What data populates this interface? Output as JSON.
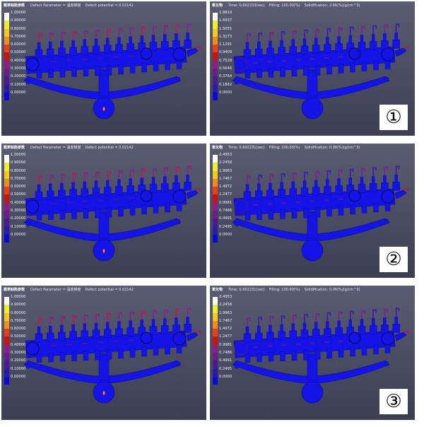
{
  "palette": [
    "#0a0ad8",
    "#2a1aa8",
    "#4a1a92",
    "#6a1f86",
    "#8e1e86",
    "#c81414",
    "#ef3d16",
    "#f28c1c",
    "#f7c81c",
    "#f0ec36",
    "#ffffff"
  ],
  "rows": [
    {
      "left": {
        "title": "概率缺陷参数",
        "fields": [
          "Defect Parameter = 温度梯度",
          "Defect potential = 0.02142"
        ],
        "legend": [
          "1.00000",
          "0.90000",
          "0.80000",
          "0.70000",
          "0.60000",
          "0.50000",
          "0.40000",
          "0.30000",
          "0.20000",
          "0.10000",
          "0.00000"
        ]
      },
      "right": {
        "title": "氧化物",
        "fields": [
          "Time: 0.602233(sec)",
          "Filling: 100.00(%)",
          "Solidification:  2.66(%)(g/cm^3)"
        ],
        "legend": [
          "1.8819",
          "1.6937",
          "1.5055",
          "1.3173",
          "1.1291",
          "0.9409",
          "0.7528",
          "0.5646",
          "0.3764",
          "0.1882",
          "0.0000"
        ],
        "badge": "①"
      }
    },
    {
      "left": {
        "title": "概率缺陷参数",
        "fields": [
          "Defect Parameter = 温度梯度",
          "Defect potential = 0.02142"
        ],
        "legend": [
          "1.00000",
          "0.90000",
          "0.80000",
          "0.70000",
          "0.60000",
          "0.50000",
          "0.40000",
          "0.30000",
          "0.20000",
          "0.10000",
          "0.00000"
        ]
      },
      "right": {
        "title": "氧化物",
        "fields": [
          "Time: 0.602231(sec)",
          "Filling: 100.00(%)",
          "Solidification:  0.06(%)(g/cm^3)"
        ],
        "legend": [
          "2.4953",
          "2.2458",
          "1.9963",
          "1.7467",
          "1.4972",
          "1.2477",
          "0.9981",
          "0.7486",
          "0.4991",
          "0.2495",
          "0.0000"
        ],
        "badge": "②"
      }
    },
    {
      "left": {
        "title": "概率缺陷参数",
        "fields": [
          "Defect Parameter = 温度梯度",
          "Defect potential = 0.02142"
        ],
        "legend": [
          "1.00000",
          "0.90000",
          "0.80000",
          "0.70000",
          "0.60000",
          "0.50000",
          "0.40000",
          "0.30000",
          "0.20000",
          "0.10000",
          "0.00000"
        ]
      },
      "right": {
        "title": "氧化物",
        "fields": [
          "Time: 0.602231(sec)",
          "Filling: 100.00(%)",
          "Solidification:  0.06(%)(g/cm^3)"
        ],
        "legend": [
          "2.4953",
          "2.2458",
          "1.9963",
          "1.7467",
          "1.4972",
          "1.2477",
          "0.9981",
          "0.7486",
          "0.4991",
          "0.2495",
          "0.0000"
        ],
        "badge": "③"
      }
    }
  ]
}
